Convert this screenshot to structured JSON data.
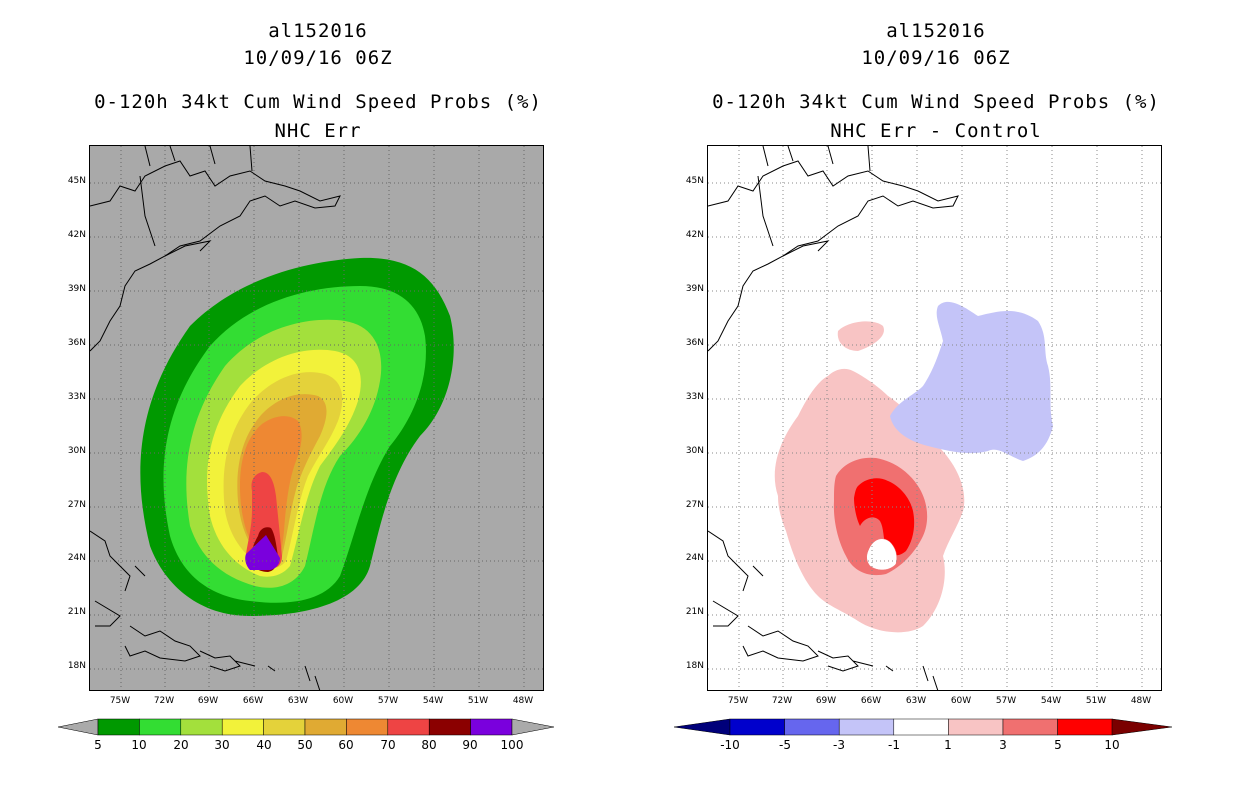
{
  "left": {
    "storm_id": "al152016",
    "datetime": "10/09/16 06Z",
    "product": "0-120h 34kt Cum Wind Speed Probs (%)",
    "subtitle": "NHC Err",
    "colorbar": {
      "labels": [
        "5",
        "10",
        "20",
        "30",
        "40",
        "50",
        "60",
        "70",
        "80",
        "90",
        "100"
      ],
      "colors": [
        "#009900",
        "#33dd33",
        "#a3e03c",
        "#f2f23a",
        "#e4d23a",
        "#e0aa33",
        "#ee8833",
        "#ee4444",
        "#8b0000",
        "#7a00dd"
      ],
      "end_color": "#aaaaaa"
    },
    "background": "#a9a9a9"
  },
  "right": {
    "storm_id": "al152016",
    "datetime": "10/09/16 06Z",
    "product": "0-120h 34kt Cum Wind Speed Probs (%)",
    "subtitle": "NHC Err - Control",
    "colorbar": {
      "labels": [
        "-10",
        "-5",
        "-3",
        "-1",
        "1",
        "3",
        "5",
        "10"
      ],
      "colors": [
        "#0000cc",
        "#6666ee",
        "#c4c4f8",
        "#ffffff",
        "#f8c4c4",
        "#f07070",
        "#ff0000"
      ],
      "end_low": "#00007a",
      "end_high": "#7a0000"
    },
    "background": "#ffffff"
  },
  "axes": {
    "lat_labels": [
      "45N",
      "42N",
      "39N",
      "36N",
      "33N",
      "30N",
      "27N",
      "24N",
      "21N",
      "18N"
    ],
    "lon_labels": [
      "75W",
      "72W",
      "69W",
      "66W",
      "63W",
      "60W",
      "57W",
      "54W",
      "51W",
      "48W"
    ]
  },
  "map_data": {
    "lat_range": [
      16.5,
      47.0
    ],
    "lon_range": [
      -77.0,
      -46.5
    ],
    "left_contours": [
      {
        "level": "5",
        "color": "#009900"
      },
      {
        "level": "10",
        "color": "#33dd33"
      },
      {
        "level": "20",
        "color": "#a3e03c"
      },
      {
        "level": "30",
        "color": "#f2f23a"
      },
      {
        "level": "40",
        "color": "#e4d23a"
      },
      {
        "level": "50",
        "color": "#e0aa33"
      },
      {
        "level": "60",
        "color": "#ee8833"
      },
      {
        "level": "70",
        "color": "#ee4444"
      },
      {
        "level": "80",
        "color": "#8b0000"
      },
      {
        "level": "90",
        "color": "#7a00dd"
      }
    ]
  }
}
